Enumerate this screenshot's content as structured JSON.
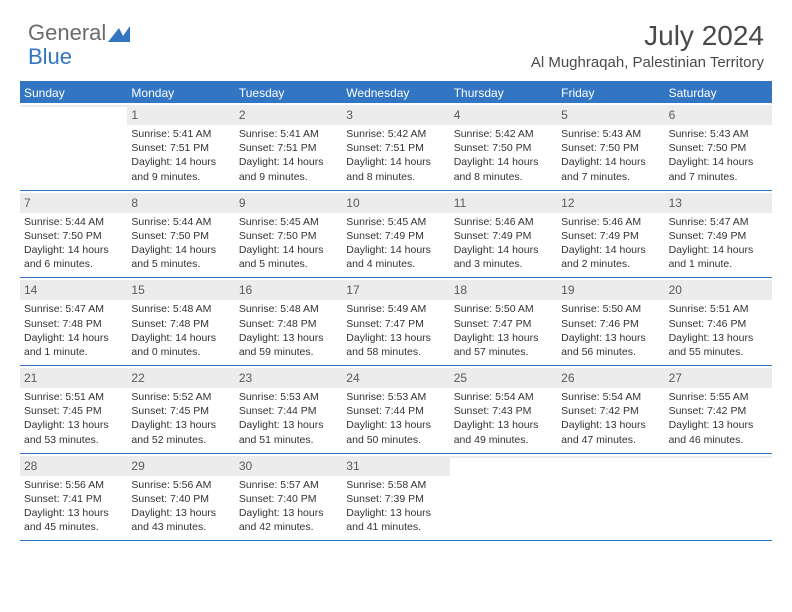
{
  "logo": {
    "general": "General",
    "blue": "Blue"
  },
  "title": "July 2024",
  "location": "Al Mughraqah, Palestinian Territory",
  "colors": {
    "header_bg": "#3276c3",
    "header_text": "#ffffff",
    "daynum_bg": "#ececec",
    "text": "#333333",
    "title_text": "#4a4a4a",
    "border": "#3276c3"
  },
  "day_headers": [
    "Sunday",
    "Monday",
    "Tuesday",
    "Wednesday",
    "Thursday",
    "Friday",
    "Saturday"
  ],
  "weeks": [
    [
      {
        "empty": true
      },
      {
        "day": "1",
        "sunrise": "Sunrise: 5:41 AM",
        "sunset": "Sunset: 7:51 PM",
        "daylight1": "Daylight: 14 hours",
        "daylight2": "and 9 minutes."
      },
      {
        "day": "2",
        "sunrise": "Sunrise: 5:41 AM",
        "sunset": "Sunset: 7:51 PM",
        "daylight1": "Daylight: 14 hours",
        "daylight2": "and 9 minutes."
      },
      {
        "day": "3",
        "sunrise": "Sunrise: 5:42 AM",
        "sunset": "Sunset: 7:51 PM",
        "daylight1": "Daylight: 14 hours",
        "daylight2": "and 8 minutes."
      },
      {
        "day": "4",
        "sunrise": "Sunrise: 5:42 AM",
        "sunset": "Sunset: 7:50 PM",
        "daylight1": "Daylight: 14 hours",
        "daylight2": "and 8 minutes."
      },
      {
        "day": "5",
        "sunrise": "Sunrise: 5:43 AM",
        "sunset": "Sunset: 7:50 PM",
        "daylight1": "Daylight: 14 hours",
        "daylight2": "and 7 minutes."
      },
      {
        "day": "6",
        "sunrise": "Sunrise: 5:43 AM",
        "sunset": "Sunset: 7:50 PM",
        "daylight1": "Daylight: 14 hours",
        "daylight2": "and 7 minutes."
      }
    ],
    [
      {
        "day": "7",
        "sunrise": "Sunrise: 5:44 AM",
        "sunset": "Sunset: 7:50 PM",
        "daylight1": "Daylight: 14 hours",
        "daylight2": "and 6 minutes."
      },
      {
        "day": "8",
        "sunrise": "Sunrise: 5:44 AM",
        "sunset": "Sunset: 7:50 PM",
        "daylight1": "Daylight: 14 hours",
        "daylight2": "and 5 minutes."
      },
      {
        "day": "9",
        "sunrise": "Sunrise: 5:45 AM",
        "sunset": "Sunset: 7:50 PM",
        "daylight1": "Daylight: 14 hours",
        "daylight2": "and 5 minutes."
      },
      {
        "day": "10",
        "sunrise": "Sunrise: 5:45 AM",
        "sunset": "Sunset: 7:49 PM",
        "daylight1": "Daylight: 14 hours",
        "daylight2": "and 4 minutes."
      },
      {
        "day": "11",
        "sunrise": "Sunrise: 5:46 AM",
        "sunset": "Sunset: 7:49 PM",
        "daylight1": "Daylight: 14 hours",
        "daylight2": "and 3 minutes."
      },
      {
        "day": "12",
        "sunrise": "Sunrise: 5:46 AM",
        "sunset": "Sunset: 7:49 PM",
        "daylight1": "Daylight: 14 hours",
        "daylight2": "and 2 minutes."
      },
      {
        "day": "13",
        "sunrise": "Sunrise: 5:47 AM",
        "sunset": "Sunset: 7:49 PM",
        "daylight1": "Daylight: 14 hours",
        "daylight2": "and 1 minute."
      }
    ],
    [
      {
        "day": "14",
        "sunrise": "Sunrise: 5:47 AM",
        "sunset": "Sunset: 7:48 PM",
        "daylight1": "Daylight: 14 hours",
        "daylight2": "and 1 minute."
      },
      {
        "day": "15",
        "sunrise": "Sunrise: 5:48 AM",
        "sunset": "Sunset: 7:48 PM",
        "daylight1": "Daylight: 14 hours",
        "daylight2": "and 0 minutes."
      },
      {
        "day": "16",
        "sunrise": "Sunrise: 5:48 AM",
        "sunset": "Sunset: 7:48 PM",
        "daylight1": "Daylight: 13 hours",
        "daylight2": "and 59 minutes."
      },
      {
        "day": "17",
        "sunrise": "Sunrise: 5:49 AM",
        "sunset": "Sunset: 7:47 PM",
        "daylight1": "Daylight: 13 hours",
        "daylight2": "and 58 minutes."
      },
      {
        "day": "18",
        "sunrise": "Sunrise: 5:50 AM",
        "sunset": "Sunset: 7:47 PM",
        "daylight1": "Daylight: 13 hours",
        "daylight2": "and 57 minutes."
      },
      {
        "day": "19",
        "sunrise": "Sunrise: 5:50 AM",
        "sunset": "Sunset: 7:46 PM",
        "daylight1": "Daylight: 13 hours",
        "daylight2": "and 56 minutes."
      },
      {
        "day": "20",
        "sunrise": "Sunrise: 5:51 AM",
        "sunset": "Sunset: 7:46 PM",
        "daylight1": "Daylight: 13 hours",
        "daylight2": "and 55 minutes."
      }
    ],
    [
      {
        "day": "21",
        "sunrise": "Sunrise: 5:51 AM",
        "sunset": "Sunset: 7:45 PM",
        "daylight1": "Daylight: 13 hours",
        "daylight2": "and 53 minutes."
      },
      {
        "day": "22",
        "sunrise": "Sunrise: 5:52 AM",
        "sunset": "Sunset: 7:45 PM",
        "daylight1": "Daylight: 13 hours",
        "daylight2": "and 52 minutes."
      },
      {
        "day": "23",
        "sunrise": "Sunrise: 5:53 AM",
        "sunset": "Sunset: 7:44 PM",
        "daylight1": "Daylight: 13 hours",
        "daylight2": "and 51 minutes."
      },
      {
        "day": "24",
        "sunrise": "Sunrise: 5:53 AM",
        "sunset": "Sunset: 7:44 PM",
        "daylight1": "Daylight: 13 hours",
        "daylight2": "and 50 minutes."
      },
      {
        "day": "25",
        "sunrise": "Sunrise: 5:54 AM",
        "sunset": "Sunset: 7:43 PM",
        "daylight1": "Daylight: 13 hours",
        "daylight2": "and 49 minutes."
      },
      {
        "day": "26",
        "sunrise": "Sunrise: 5:54 AM",
        "sunset": "Sunset: 7:42 PM",
        "daylight1": "Daylight: 13 hours",
        "daylight2": "and 47 minutes."
      },
      {
        "day": "27",
        "sunrise": "Sunrise: 5:55 AM",
        "sunset": "Sunset: 7:42 PM",
        "daylight1": "Daylight: 13 hours",
        "daylight2": "and 46 minutes."
      }
    ],
    [
      {
        "day": "28",
        "sunrise": "Sunrise: 5:56 AM",
        "sunset": "Sunset: 7:41 PM",
        "daylight1": "Daylight: 13 hours",
        "daylight2": "and 45 minutes."
      },
      {
        "day": "29",
        "sunrise": "Sunrise: 5:56 AM",
        "sunset": "Sunset: 7:40 PM",
        "daylight1": "Daylight: 13 hours",
        "daylight2": "and 43 minutes."
      },
      {
        "day": "30",
        "sunrise": "Sunrise: 5:57 AM",
        "sunset": "Sunset: 7:40 PM",
        "daylight1": "Daylight: 13 hours",
        "daylight2": "and 42 minutes."
      },
      {
        "day": "31",
        "sunrise": "Sunrise: 5:58 AM",
        "sunset": "Sunset: 7:39 PM",
        "daylight1": "Daylight: 13 hours",
        "daylight2": "and 41 minutes."
      },
      {
        "empty": true
      },
      {
        "empty": true
      },
      {
        "empty": true
      }
    ]
  ]
}
